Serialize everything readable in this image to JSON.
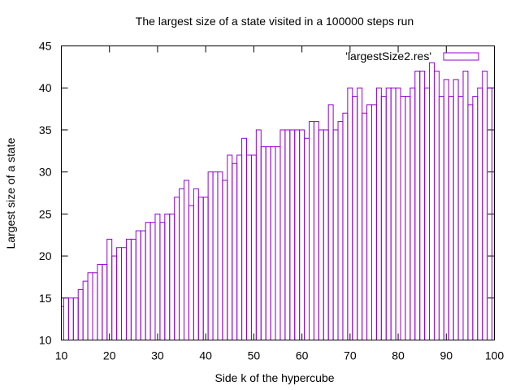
{
  "chart_data": {
    "type": "bar",
    "style": "histogram-steps",
    "title": "The largest size of a state visited in a 100000 steps run",
    "xlabel": "Side k of the hypercube",
    "ylabel": "Largest size of a state",
    "xlim": [
      10,
      100
    ],
    "ylim": [
      10,
      45
    ],
    "xticks": [
      10,
      20,
      30,
      40,
      50,
      60,
      70,
      80,
      90,
      100
    ],
    "yticks": [
      10,
      15,
      20,
      25,
      30,
      35,
      40,
      45
    ],
    "grid": false,
    "legend_position": "top-right",
    "series": [
      {
        "name": "'largestSize2.res'",
        "color": "#9400d3",
        "x": [
          10,
          11,
          12,
          13,
          14,
          15,
          16,
          17,
          18,
          19,
          20,
          21,
          22,
          23,
          24,
          25,
          26,
          27,
          28,
          29,
          30,
          31,
          32,
          33,
          34,
          35,
          36,
          37,
          38,
          39,
          40,
          41,
          42,
          43,
          44,
          45,
          46,
          47,
          48,
          49,
          50,
          51,
          52,
          53,
          54,
          55,
          56,
          57,
          58,
          59,
          60,
          61,
          62,
          63,
          64,
          65,
          66,
          67,
          68,
          69,
          70,
          71,
          72,
          73,
          74,
          75,
          76,
          77,
          78,
          79,
          80,
          81,
          82,
          83,
          84,
          85,
          86,
          87,
          88,
          89,
          90,
          91,
          92,
          93,
          94,
          95,
          96,
          97,
          98,
          99,
          100
        ],
        "values": [
          14,
          15,
          15,
          15,
          16,
          17,
          18,
          18,
          19,
          19,
          22,
          20,
          21,
          21,
          22,
          22,
          23,
          23,
          24,
          24,
          25,
          24,
          25,
          25,
          27,
          28,
          29,
          26,
          28,
          27,
          27,
          30,
          30,
          30,
          29,
          32,
          31,
          32,
          34,
          32,
          32,
          35,
          33,
          33,
          33,
          33,
          35,
          35,
          35,
          35,
          35,
          34,
          36,
          36,
          35,
          35,
          38,
          35,
          36,
          37,
          40,
          39,
          40,
          37,
          38,
          38,
          40,
          39,
          40,
          40,
          40,
          39,
          39,
          40,
          42,
          42,
          40,
          43,
          42,
          39,
          41,
          39,
          41,
          39,
          42,
          38,
          39,
          40,
          42,
          40,
          40
        ]
      }
    ]
  }
}
